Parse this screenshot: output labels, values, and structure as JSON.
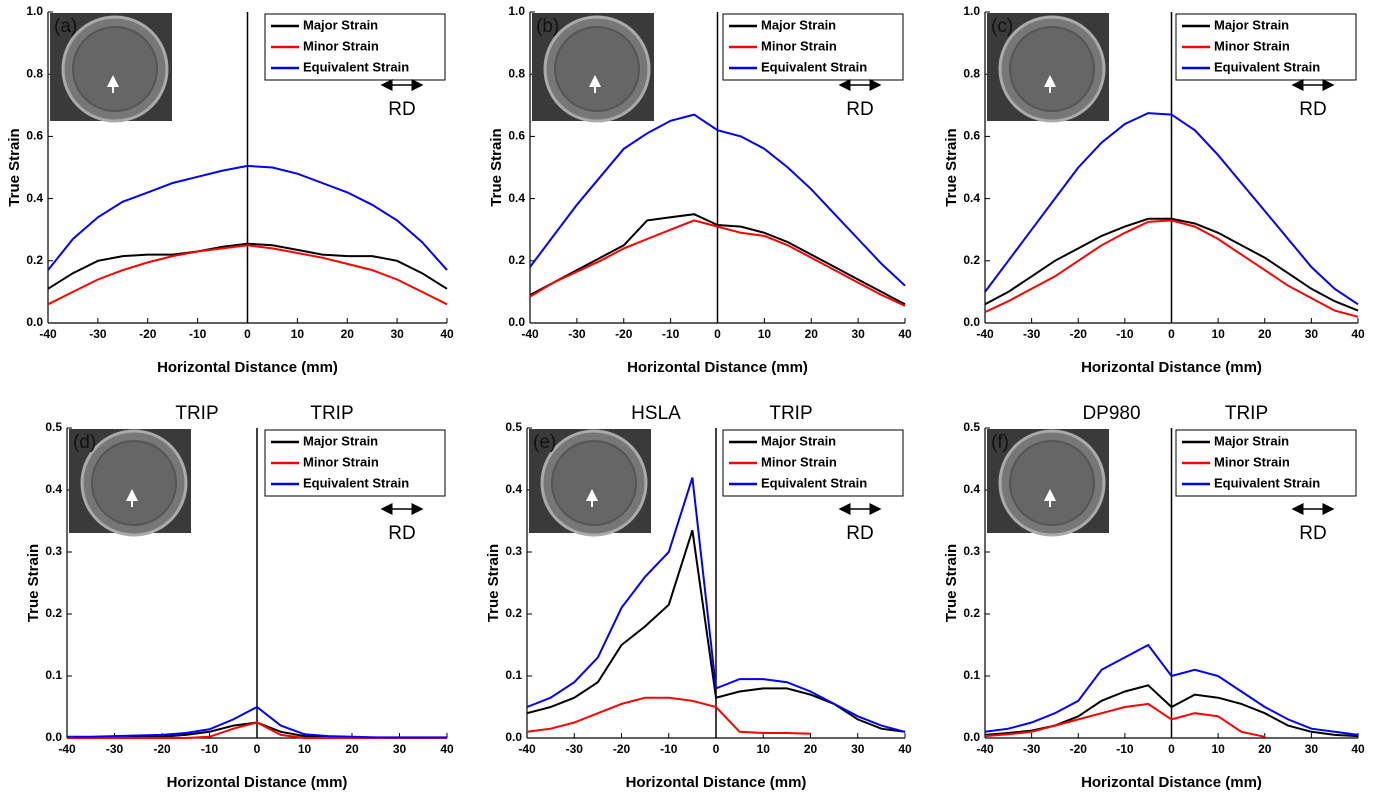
{
  "chart_data": [
    {
      "type": "line",
      "panel_label": "(a)",
      "x_label": "Horizontal Distance (mm)",
      "y_label": "True Strain",
      "annotations": [
        "RD"
      ],
      "legend": "upper right",
      "x": [
        -40,
        -35,
        -30,
        -25,
        -20,
        -15,
        -10,
        -5,
        0,
        5,
        10,
        15,
        20,
        25,
        30,
        35,
        40
      ],
      "series": [
        {
          "name": "Major Strain",
          "color": "#000000",
          "values": [
            0.11,
            0.16,
            0.2,
            0.215,
            0.22,
            0.22,
            0.23,
            0.245,
            0.255,
            0.25,
            0.235,
            0.22,
            0.215,
            0.215,
            0.2,
            0.16,
            0.11
          ]
        },
        {
          "name": "Minor Strain",
          "color": "#ff0000",
          "values": [
            0.06,
            0.1,
            0.14,
            0.17,
            0.195,
            0.215,
            0.23,
            0.24,
            0.25,
            0.24,
            0.225,
            0.21,
            0.19,
            0.17,
            0.14,
            0.1,
            0.06
          ]
        },
        {
          "name": "Equivalent Strain",
          "color": "#0000ff",
          "values": [
            0.17,
            0.27,
            0.34,
            0.39,
            0.42,
            0.45,
            0.47,
            0.49,
            0.505,
            0.5,
            0.48,
            0.45,
            0.42,
            0.38,
            0.33,
            0.26,
            0.17
          ]
        }
      ],
      "xlim": [
        -40,
        40
      ],
      "xticks": [
        -40,
        -30,
        -20,
        -10,
        0,
        10,
        20,
        30,
        40
      ],
      "ylim": [
        0,
        1
      ],
      "yticks": [
        {
          "value": 0,
          "label": "0.0"
        },
        0.2,
        0.4,
        0.6,
        0.8,
        {
          "value": 1,
          "label": "1.0"
        }
      ]
    },
    {
      "type": "line",
      "panel_label": "(b)",
      "x_label": "Horizontal Distance (mm)",
      "y_label": "True Strain",
      "annotations": [
        "RD"
      ],
      "legend": "upper right",
      "x": [
        -40,
        -35,
        -30,
        -25,
        -20,
        -15,
        -10,
        -5,
        0,
        5,
        10,
        15,
        20,
        25,
        30,
        35,
        40
      ],
      "series": [
        {
          "name": "Major Strain",
          "color": "#000000",
          "values": [
            0.09,
            0.13,
            0.17,
            0.21,
            0.25,
            0.33,
            0.34,
            0.35,
            0.315,
            0.31,
            0.29,
            0.26,
            0.22,
            0.18,
            0.14,
            0.1,
            0.06
          ]
        },
        {
          "name": "Minor Strain",
          "color": "#ff0000",
          "values": [
            0.085,
            0.13,
            0.165,
            0.2,
            0.24,
            0.27,
            0.3,
            0.33,
            0.31,
            0.29,
            0.28,
            0.25,
            0.21,
            0.17,
            0.13,
            0.09,
            0.055
          ]
        },
        {
          "name": "Equivalent Strain",
          "color": "#0000ff",
          "values": [
            0.18,
            0.28,
            0.38,
            0.47,
            0.56,
            0.61,
            0.65,
            0.67,
            0.62,
            0.6,
            0.56,
            0.5,
            0.43,
            0.35,
            0.27,
            0.19,
            0.12
          ]
        }
      ],
      "xlim": [
        -40,
        40
      ],
      "xticks": [
        -40,
        -30,
        -20,
        -10,
        0,
        10,
        20,
        30,
        40
      ],
      "ylim": [
        0,
        1
      ],
      "yticks": [
        {
          "value": 0,
          "label": "0.0"
        },
        0.2,
        0.4,
        0.6,
        0.8,
        {
          "value": 1,
          "label": "1.0"
        }
      ]
    },
    {
      "type": "line",
      "panel_label": "(c)",
      "x_label": "Horizontal Distance (mm)",
      "y_label": "True Strain",
      "annotations": [
        "RD"
      ],
      "legend": "upper right",
      "x": [
        -40,
        -35,
        -30,
        -25,
        -20,
        -15,
        -10,
        -5,
        0,
        5,
        10,
        15,
        20,
        25,
        30,
        35,
        40
      ],
      "series": [
        {
          "name": "Major Strain",
          "color": "#000000",
          "values": [
            0.06,
            0.1,
            0.15,
            0.2,
            0.24,
            0.28,
            0.31,
            0.335,
            0.335,
            0.32,
            0.29,
            0.25,
            0.21,
            0.16,
            0.11,
            0.07,
            0.04
          ]
        },
        {
          "name": "Minor Strain",
          "color": "#ff0000",
          "values": [
            0.035,
            0.07,
            0.11,
            0.15,
            0.2,
            0.25,
            0.29,
            0.325,
            0.33,
            0.31,
            0.27,
            0.22,
            0.17,
            0.12,
            0.08,
            0.04,
            0.02
          ]
        },
        {
          "name": "Equivalent Strain",
          "color": "#0000ff",
          "values": [
            0.1,
            0.2,
            0.3,
            0.4,
            0.5,
            0.58,
            0.64,
            0.675,
            0.67,
            0.62,
            0.54,
            0.45,
            0.36,
            0.27,
            0.18,
            0.11,
            0.06
          ]
        }
      ],
      "xlim": [
        -40,
        40
      ],
      "xticks": [
        -40,
        -30,
        -20,
        -10,
        0,
        10,
        20,
        30,
        40
      ],
      "ylim": [
        0,
        1
      ],
      "yticks": [
        {
          "value": 0,
          "label": "0.0"
        },
        0.2,
        0.4,
        0.6,
        0.8,
        {
          "value": 1,
          "label": "1.0"
        }
      ]
    },
    {
      "type": "line",
      "panel_label": "(d)",
      "x_label": "Horizontal Distance (mm)",
      "y_label": "True Strain",
      "annotations": [
        "RD"
      ],
      "material_labels": [
        "TRIP",
        "TRIP"
      ],
      "legend": "upper right",
      "x": [
        -40,
        -35,
        -30,
        -25,
        -20,
        -15,
        -10,
        -5,
        0,
        5,
        10,
        15,
        20,
        25,
        30,
        35,
        40
      ],
      "series": [
        {
          "name": "Major Strain",
          "color": "#000000",
          "values": [
            0,
            0,
            0,
            0.001,
            0.002,
            0.005,
            0.01,
            0.02,
            0.025,
            0.01,
            0.003,
            0.001,
            0,
            0,
            0,
            0,
            0
          ]
        },
        {
          "name": "Minor Strain",
          "color": "#ff0000",
          "values": [
            0,
            0,
            0,
            0,
            0,
            0,
            0.002,
            0.015,
            0.025,
            0.005,
            0,
            0,
            0,
            0,
            0,
            0,
            0
          ]
        },
        {
          "name": "Equivalent Strain",
          "color": "#0000ff",
          "values": [
            0.002,
            0.002,
            0.003,
            0.004,
            0.005,
            0.008,
            0.014,
            0.03,
            0.05,
            0.02,
            0.006,
            0.003,
            0.002,
            0.001,
            0.001,
            0.001,
            0.001
          ]
        }
      ],
      "xlim": [
        -40,
        40
      ],
      "xticks": [
        -40,
        -30,
        -20,
        -10,
        0,
        10,
        20,
        30,
        40
      ],
      "ylim": [
        0,
        0.5
      ],
      "yticks": [
        {
          "value": 0,
          "label": "0.0"
        },
        0.1,
        0.2,
        0.3,
        0.4,
        0.5
      ]
    },
    {
      "type": "line",
      "panel_label": "(e)",
      "x_label": "Horizontal Distance (mm)",
      "y_label": "True Strain",
      "annotations": [
        "RD"
      ],
      "material_labels": [
        "HSLA",
        "TRIP"
      ],
      "legend": "upper right",
      "x": [
        -40,
        -35,
        -30,
        -25,
        -20,
        -15,
        -10,
        -5,
        0,
        5,
        10,
        15,
        20,
        25,
        30,
        35,
        40
      ],
      "series": [
        {
          "name": "Major Strain",
          "color": "#000000",
          "values": [
            0.04,
            0.05,
            0.065,
            0.09,
            0.15,
            0.18,
            0.215,
            0.335,
            0.065,
            0.075,
            0.08,
            0.08,
            0.07,
            0.055,
            0.03,
            0.015,
            0.01
          ]
        },
        {
          "name": "Minor Strain",
          "color": "#ff0000",
          "values": [
            0.01,
            0.015,
            0.025,
            0.04,
            0.055,
            0.065,
            0.065,
            0.06,
            0.05,
            0.01,
            0.008,
            0.008,
            0.007,
            null,
            null,
            null,
            null
          ]
        },
        {
          "name": "Equivalent Strain",
          "color": "#0000ff",
          "values": [
            0.05,
            0.065,
            0.09,
            0.13,
            0.21,
            0.26,
            0.3,
            0.42,
            0.08,
            0.095,
            0.095,
            0.09,
            0.075,
            0.055,
            0.035,
            0.02,
            0.01
          ]
        }
      ],
      "xlim": [
        -40,
        40
      ],
      "xticks": [
        -40,
        -30,
        -20,
        -10,
        0,
        10,
        20,
        30,
        40
      ],
      "ylim": [
        0,
        0.5
      ],
      "yticks": [
        {
          "value": 0,
          "label": "0.0"
        },
        0.1,
        0.2,
        0.3,
        0.4,
        0.5
      ]
    },
    {
      "type": "line",
      "panel_label": "(f)",
      "x_label": "Horizontal Distance (mm)",
      "y_label": "True Strain",
      "annotations": [
        "RD"
      ],
      "material_labels": [
        "DP980",
        "TRIP"
      ],
      "legend": "upper right",
      "x": [
        -40,
        -35,
        -30,
        -25,
        -20,
        -15,
        -10,
        -5,
        0,
        5,
        10,
        15,
        20,
        25,
        30,
        35,
        40
      ],
      "series": [
        {
          "name": "Major Strain",
          "color": "#000000",
          "values": [
            0.005,
            0.008,
            0.012,
            0.02,
            0.035,
            0.06,
            0.075,
            0.085,
            0.05,
            0.07,
            0.065,
            0.055,
            0.04,
            0.02,
            0.01,
            0.005,
            0.003
          ]
        },
        {
          "name": "Minor Strain",
          "color": "#ff0000",
          "values": [
            0.003,
            0.006,
            0.01,
            0.02,
            0.03,
            0.04,
            0.05,
            0.055,
            0.03,
            0.04,
            0.035,
            0.01,
            0.002,
            null,
            null,
            null,
            null
          ]
        },
        {
          "name": "Equivalent Strain",
          "color": "#0000ff",
          "values": [
            0.01,
            0.015,
            0.025,
            0.04,
            0.06,
            0.11,
            0.13,
            0.15,
            0.1,
            0.11,
            0.1,
            0.075,
            0.05,
            0.03,
            0.015,
            0.01,
            0.005
          ]
        }
      ],
      "xlim": [
        -40,
        40
      ],
      "xticks": [
        -40,
        -30,
        -20,
        -10,
        0,
        10,
        20,
        30,
        40
      ],
      "ylim": [
        0,
        0.5
      ],
      "yticks": [
        {
          "value": 0,
          "label": "0.0"
        },
        0.1,
        0.2,
        0.3,
        0.4,
        0.5
      ]
    }
  ]
}
